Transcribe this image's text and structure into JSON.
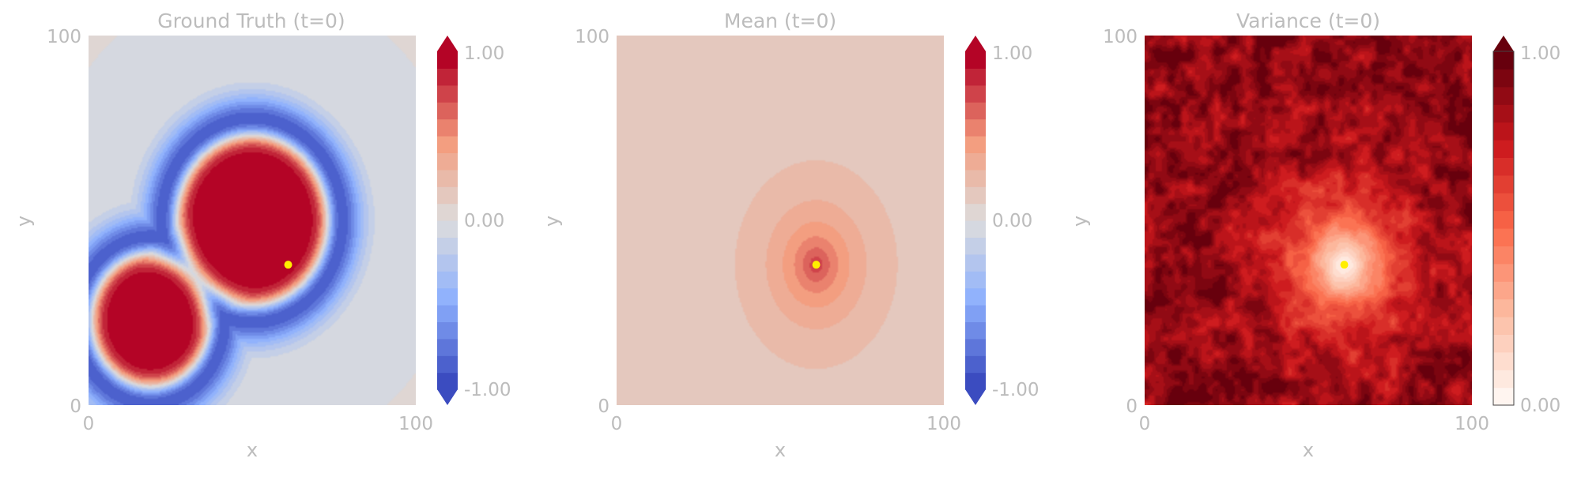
{
  "chart_data": [
    {
      "type": "heatmap",
      "title": "Ground Truth (t=0)",
      "xlabel": "x",
      "ylabel": "y",
      "xlim": [
        0,
        100
      ],
      "ylim": [
        0,
        100
      ],
      "x_ticks": [
        "0",
        "100"
      ],
      "y_ticks": [
        "0",
        "100"
      ],
      "colormap": "coolwarm",
      "colorbar_ticks": [
        "1.00",
        "0.00",
        "-1.00"
      ],
      "colorbar_range": [
        -1,
        1
      ],
      "colorbar_extend": "both",
      "field": {
        "background": 0.0,
        "blobs": [
          {
            "cx": 50,
            "cy": 50,
            "r": 22,
            "peak": 1.0
          },
          {
            "cx": 19,
            "cy": 23,
            "r": 17,
            "peak": 1.0
          }
        ],
        "ring_value": -1.0
      },
      "observation_point": {
        "x": 61,
        "y": 38,
        "color": "#ffee00"
      }
    },
    {
      "type": "heatmap",
      "title": "Mean (t=0)",
      "xlabel": "x",
      "ylabel": "y",
      "xlim": [
        0,
        100
      ],
      "ylim": [
        0,
        100
      ],
      "x_ticks": [
        "0",
        "100"
      ],
      "y_ticks": [
        "0",
        "100"
      ],
      "colormap": "coolwarm",
      "colorbar_ticks": [
        "1.00",
        "0.00",
        "-1.00"
      ],
      "colorbar_range": [
        -1,
        1
      ],
      "colorbar_extend": "both",
      "field": {
        "center": {
          "x": 61,
          "y": 38
        },
        "peak": 0.75,
        "floor": 0.12
      },
      "observation_point": {
        "x": 61,
        "y": 38,
        "color": "#ffee00"
      }
    },
    {
      "type": "heatmap",
      "title": "Variance (t=0)",
      "xlabel": "x",
      "ylabel": "y",
      "xlim": [
        0,
        100
      ],
      "ylim": [
        0,
        100
      ],
      "x_ticks": [
        "0",
        "100"
      ],
      "y_ticks": [
        "0",
        "100"
      ],
      "colormap": "reds",
      "colorbar_ticks": [
        "1.00",
        "0.00"
      ],
      "colorbar_range": [
        0,
        1
      ],
      "colorbar_extend": "max",
      "field": {
        "center": {
          "x": 61,
          "y": 38
        },
        "min_value": 0.0,
        "typical_value": 0.88
      },
      "observation_point": {
        "x": 61,
        "y": 38,
        "color": "#ffee00"
      }
    }
  ]
}
